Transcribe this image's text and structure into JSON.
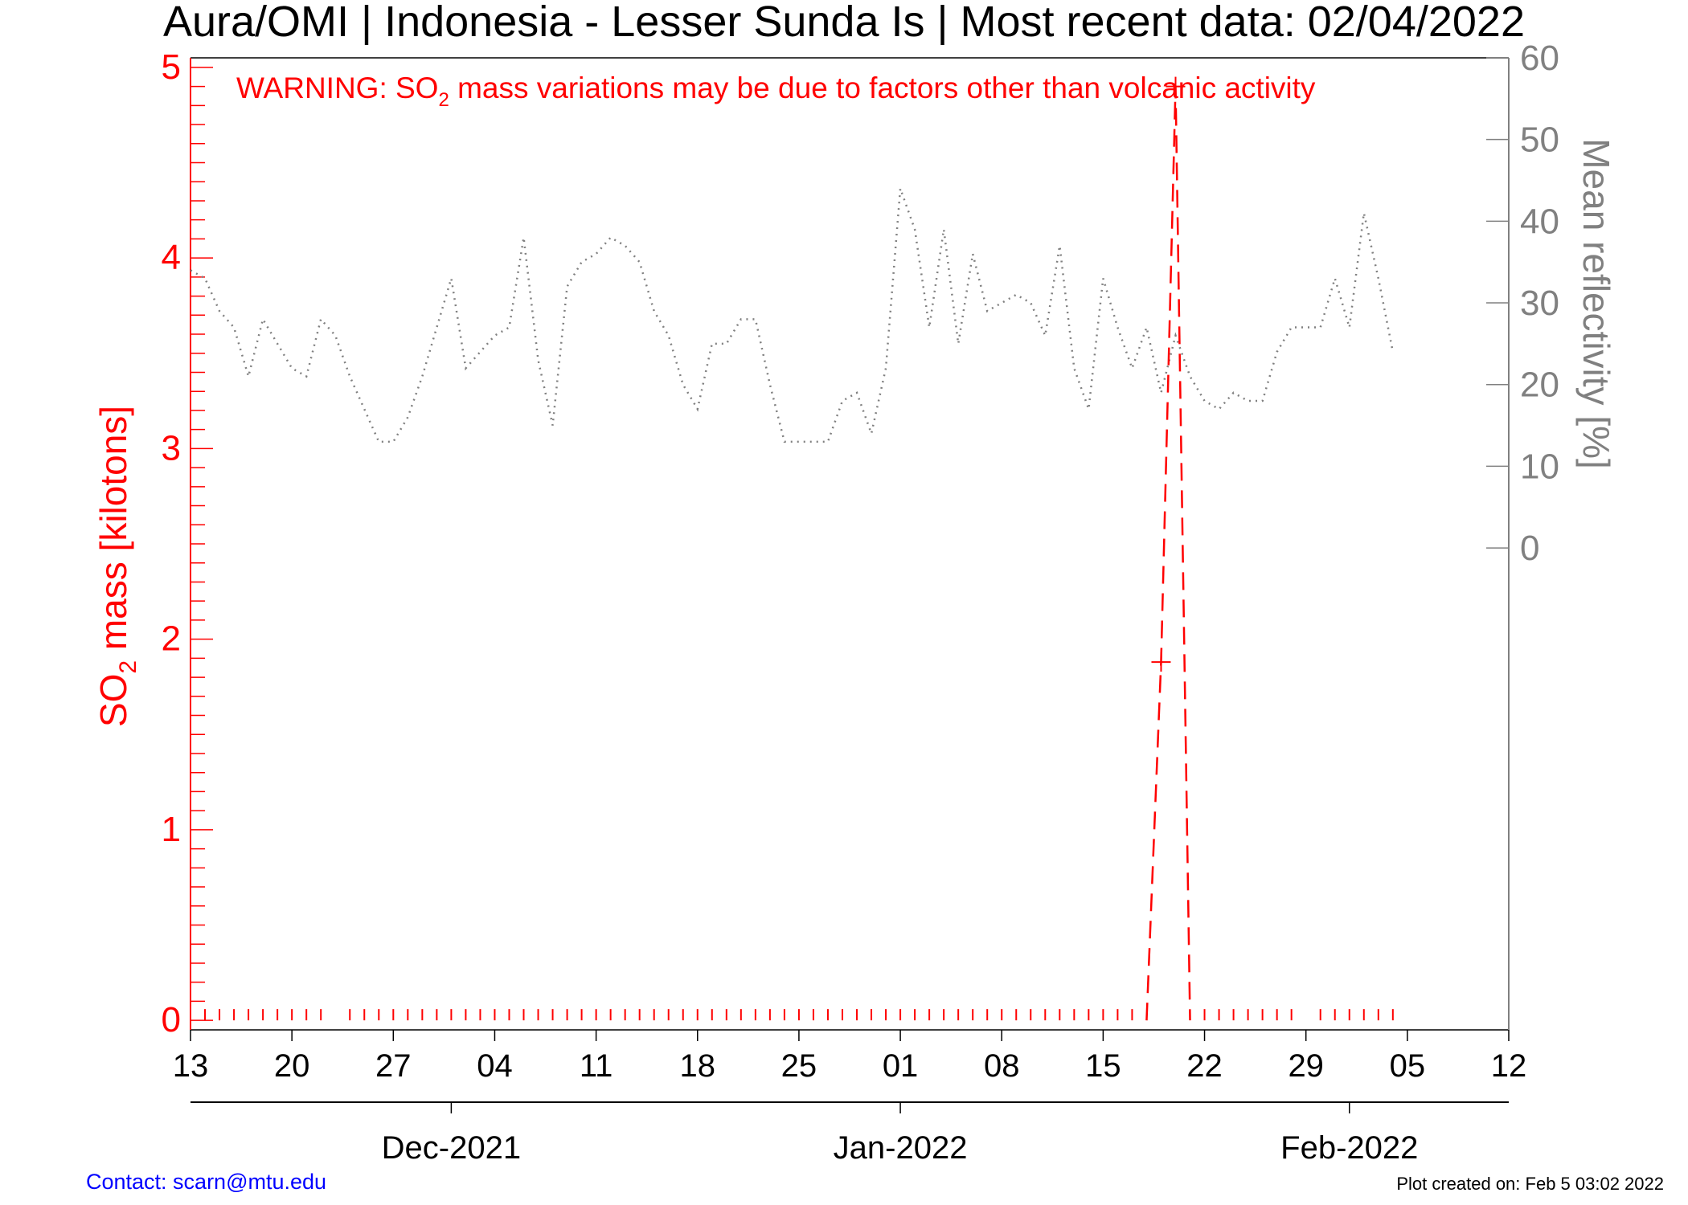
{
  "chart_data": {
    "type": "line",
    "title": "Aura/OMI | Indonesia - Lesser Sunda Is | Most recent data: 02/04/2022",
    "warning": {
      "before": "WARNING: SO",
      "sub": "2",
      "after": " mass variations may be due to factors other than volcanic activity"
    },
    "y_left": {
      "label_before": "SO",
      "label_sub": "2",
      "label_after": " mass [kilotons]",
      "range": [
        -0.05,
        5.05
      ],
      "ticks": [
        "0",
        "1",
        "2",
        "3",
        "4",
        "5"
      ],
      "color": "#ff0000"
    },
    "y_right": {
      "label": "Mean reflectivity [%]",
      "range": [
        -59,
        60
      ],
      "ticks": [
        "0",
        "10",
        "20",
        "30",
        "40",
        "50",
        "60"
      ],
      "color": "#808080"
    },
    "x": {
      "start": "2021-11-13",
      "end": "2022-02-12",
      "day_ticks": [
        "13",
        "20",
        "27",
        "04",
        "11",
        "18",
        "25",
        "01",
        "08",
        "15",
        "22",
        "29",
        "05",
        "12"
      ],
      "months": [
        {
          "label": "Dec-2021",
          "date": "2021-12-01"
        },
        {
          "label": "Jan-2022",
          "date": "2022-01-01"
        },
        {
          "label": "Feb-2022",
          "date": "2022-02-01"
        }
      ]
    },
    "series": [
      {
        "axis": "left",
        "style": "dashed",
        "color": "#ff0000",
        "points": [
          [
            "2022-01-18",
            0.0
          ],
          [
            "2022-01-19",
            1.88
          ],
          [
            "2022-01-20",
            4.9
          ],
          [
            "2022-01-21",
            0.0
          ]
        ],
        "zero_markers": [
          "2021-11-14",
          "2021-11-15",
          "2021-11-16",
          "2021-11-17",
          "2021-11-18",
          "2021-11-19",
          "2021-11-20",
          "2021-11-21",
          "2021-11-22",
          "2021-11-24",
          "2021-11-25",
          "2021-11-26",
          "2021-11-27",
          "2021-11-28",
          "2021-11-29",
          "2021-11-30",
          "2021-12-01",
          "2021-12-02",
          "2021-12-03",
          "2021-12-04",
          "2021-12-05",
          "2021-12-06",
          "2021-12-07",
          "2021-12-08",
          "2021-12-09",
          "2021-12-10",
          "2021-12-11",
          "2021-12-12",
          "2021-12-13",
          "2021-12-14",
          "2021-12-15",
          "2021-12-16",
          "2021-12-17",
          "2021-12-18",
          "2021-12-19",
          "2021-12-20",
          "2021-12-21",
          "2021-12-22",
          "2021-12-23",
          "2021-12-24",
          "2021-12-25",
          "2021-12-26",
          "2021-12-27",
          "2021-12-28",
          "2021-12-29",
          "2021-12-30",
          "2021-12-31",
          "2022-01-01",
          "2022-01-02",
          "2022-01-03",
          "2022-01-04",
          "2022-01-05",
          "2022-01-06",
          "2022-01-07",
          "2022-01-08",
          "2022-01-09",
          "2022-01-10",
          "2022-01-11",
          "2022-01-12",
          "2022-01-13",
          "2022-01-14",
          "2022-01-15",
          "2022-01-16",
          "2022-01-17",
          "2022-01-22",
          "2022-01-23",
          "2022-01-24",
          "2022-01-25",
          "2022-01-26",
          "2022-01-27",
          "2022-01-28",
          "2022-01-30",
          "2022-01-31",
          "2022-02-01",
          "2022-02-02",
          "2022-02-03",
          "2022-02-04"
        ],
        "cross_markers": [
          [
            "2022-01-19",
            1.88
          ],
          [
            "2022-01-20",
            4.9
          ]
        ]
      },
      {
        "axis": "right",
        "style": "dotted",
        "color": "#808080",
        "points": [
          [
            "2021-11-13",
            34
          ],
          [
            "2021-11-14",
            33
          ],
          [
            "2021-11-15",
            29
          ],
          [
            "2021-11-16",
            27
          ],
          [
            "2021-11-17",
            21
          ],
          [
            "2021-11-18",
            28
          ],
          [
            "2021-11-19",
            25
          ],
          [
            "2021-11-20",
            22
          ],
          [
            "2021-11-21",
            21
          ],
          [
            "2021-11-22",
            28
          ],
          [
            "2021-11-23",
            26
          ],
          [
            "2021-11-24",
            21
          ],
          [
            "2021-11-25",
            17
          ],
          [
            "2021-11-26",
            13
          ],
          [
            "2021-11-27",
            13
          ],
          [
            "2021-11-28",
            16
          ],
          [
            "2021-11-29",
            21
          ],
          [
            "2021-11-30",
            27
          ],
          [
            "2021-12-01",
            33
          ],
          [
            "2021-12-02",
            22
          ],
          [
            "2021-12-03",
            24
          ],
          [
            "2021-12-04",
            26
          ],
          [
            "2021-12-05",
            27
          ],
          [
            "2021-12-06",
            38
          ],
          [
            "2021-12-07",
            23
          ],
          [
            "2021-12-08",
            15
          ],
          [
            "2021-12-09",
            32
          ],
          [
            "2021-12-10",
            35
          ],
          [
            "2021-12-11",
            36
          ],
          [
            "2021-12-12",
            38
          ],
          [
            "2021-12-13",
            37
          ],
          [
            "2021-12-14",
            35
          ],
          [
            "2021-12-15",
            29
          ],
          [
            "2021-12-16",
            26
          ],
          [
            "2021-12-17",
            20
          ],
          [
            "2021-12-18",
            17
          ],
          [
            "2021-12-19",
            25
          ],
          [
            "2021-12-20",
            25
          ],
          [
            "2021-12-21",
            28
          ],
          [
            "2021-12-22",
            28
          ],
          [
            "2021-12-23",
            20
          ],
          [
            "2021-12-24",
            13
          ],
          [
            "2021-12-25",
            13
          ],
          [
            "2021-12-26",
            13
          ],
          [
            "2021-12-27",
            13
          ],
          [
            "2021-12-28",
            18
          ],
          [
            "2021-12-29",
            19
          ],
          [
            "2021-12-30",
            14
          ],
          [
            "2021-12-31",
            22
          ],
          [
            "2022-01-01",
            44
          ],
          [
            "2022-01-02",
            39
          ],
          [
            "2022-01-03",
            27
          ],
          [
            "2022-01-04",
            39
          ],
          [
            "2022-01-05",
            25
          ],
          [
            "2022-01-06",
            36
          ],
          [
            "2022-01-07",
            29
          ],
          [
            "2022-01-08",
            30
          ],
          [
            "2022-01-09",
            31
          ],
          [
            "2022-01-10",
            30
          ],
          [
            "2022-01-11",
            26
          ],
          [
            "2022-01-12",
            37
          ],
          [
            "2022-01-13",
            22
          ],
          [
            "2022-01-14",
            17
          ],
          [
            "2022-01-15",
            33
          ],
          [
            "2022-01-16",
            27
          ],
          [
            "2022-01-17",
            22
          ],
          [
            "2022-01-18",
            27
          ],
          [
            "2022-01-19",
            19
          ],
          [
            "2022-01-20",
            26
          ],
          [
            "2022-01-21",
            21
          ],
          [
            "2022-01-22",
            18
          ],
          [
            "2022-01-23",
            17
          ],
          [
            "2022-01-24",
            19
          ],
          [
            "2022-01-25",
            18
          ],
          [
            "2022-01-26",
            18
          ],
          [
            "2022-01-27",
            24
          ],
          [
            "2022-01-28",
            27
          ],
          [
            "2022-01-29",
            27
          ],
          [
            "2022-01-30",
            27
          ],
          [
            "2022-01-31",
            33
          ],
          [
            "2022-02-01",
            27
          ],
          [
            "2022-02-02",
            41
          ],
          [
            "2022-02-03",
            33
          ],
          [
            "2022-02-04",
            24
          ]
        ]
      }
    ]
  },
  "footer": {
    "contact": "Contact: scarn@mtu.edu",
    "created": "Plot created on: Feb  5 03:02 2022"
  }
}
